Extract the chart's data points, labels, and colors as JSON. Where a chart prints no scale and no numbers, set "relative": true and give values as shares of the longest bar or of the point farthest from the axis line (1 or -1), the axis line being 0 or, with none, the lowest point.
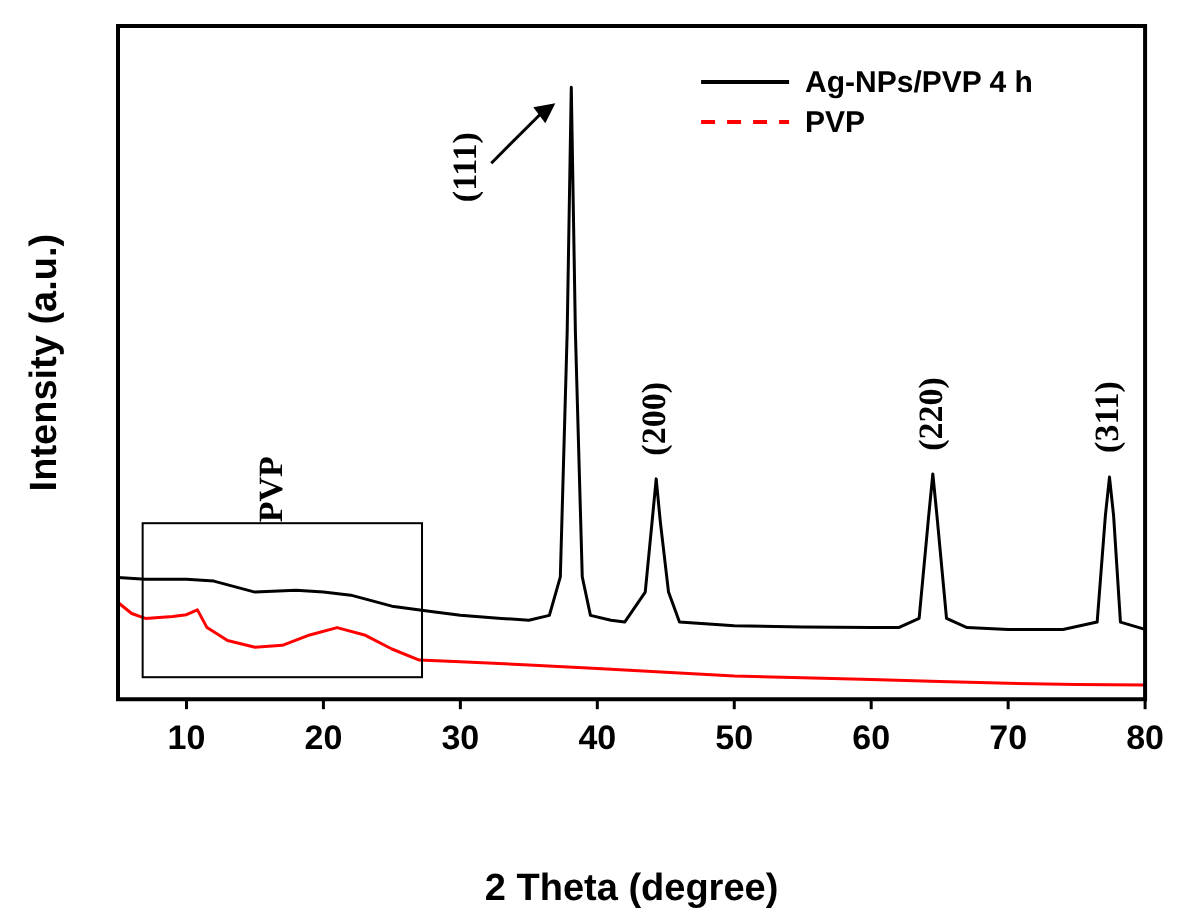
{
  "chart_data": {
    "type": "line",
    "xlabel": "2 Theta (degree)",
    "ylabel": "Intensity (a.u.)",
    "relative": true,
    "xlim": [
      5,
      80
    ],
    "xticks": [
      10,
      20,
      30,
      40,
      50,
      60,
      70,
      80
    ],
    "tick_labels": "x",
    "legend": "top right",
    "marker": "none",
    "grid": false,
    "series": [
      {
        "name": "Ag-NPs/PVP 4 h",
        "color": "#000000",
        "line_style": "solid",
        "x": [
          5,
          7,
          10,
          12,
          15,
          18,
          20,
          22,
          25,
          28,
          30,
          33,
          35,
          36.5,
          37.3,
          37.8,
          38.1,
          38.4,
          38.9,
          39.5,
          41,
          42,
          43.5,
          44,
          44.3,
          44.6,
          45.2,
          46,
          50,
          55,
          60,
          62,
          63.5,
          64.2,
          64.5,
          64.8,
          65.5,
          67,
          70,
          74,
          76.5,
          77.1,
          77.4,
          77.7,
          78.2,
          80
        ],
        "values": [
          0.199,
          0.196,
          0.196,
          0.193,
          0.175,
          0.178,
          0.175,
          0.17,
          0.152,
          0.143,
          0.137,
          0.132,
          0.129,
          0.137,
          0.2,
          0.6,
          1,
          0.6,
          0.2,
          0.137,
          0.129,
          0.126,
          0.175,
          0.29,
          0.36,
          0.29,
          0.175,
          0.126,
          0.12,
          0.118,
          0.117,
          0.117,
          0.132,
          0.3,
          0.368,
          0.3,
          0.132,
          0.117,
          0.114,
          0.114,
          0.126,
          0.3,
          0.363,
          0.3,
          0.126,
          0.114
        ]
      },
      {
        "name": "PVP",
        "color": "#ff0000",
        "line_style": "solid",
        "x": [
          5,
          6,
          7,
          9,
          10,
          10.8,
          11.5,
          13,
          15,
          17,
          19,
          21,
          23,
          25,
          27,
          30,
          35,
          40,
          45,
          50,
          55,
          60,
          65,
          70,
          75,
          80
        ],
        "values": [
          0.158,
          0.14,
          0.132,
          0.135,
          0.138,
          0.146,
          0.117,
          0.096,
          0.085,
          0.088,
          0.105,
          0.117,
          0.105,
          0.082,
          0.064,
          0.061,
          0.056,
          0.05,
          0.044,
          0.038,
          0.035,
          0.032,
          0.029,
          0.026,
          0.024,
          0.023
        ]
      }
    ],
    "annotations": [
      {
        "text": "(111)",
        "x": 38.1,
        "y": 1
      },
      {
        "text": "(200)",
        "x": 44.3,
        "y": 0.36
      },
      {
        "text": "(220)",
        "x": 64.5,
        "y": 0.368
      },
      {
        "text": "(311)",
        "x": 77.4,
        "y": 0.363
      },
      "PVP"
    ]
  }
}
